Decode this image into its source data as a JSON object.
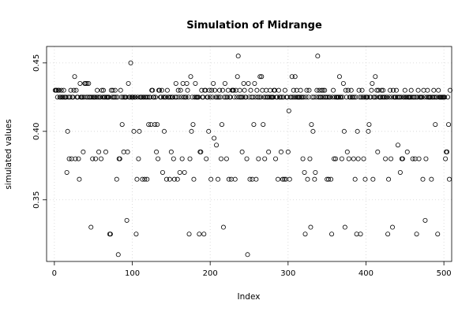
{
  "chart_data": {
    "type": "scatter",
    "title": "Simulation of Midrange",
    "xlabel": "Index",
    "ylabel": "simulated values",
    "xlim": [
      -10,
      510
    ],
    "ylim": [
      0.305,
      0.462
    ],
    "x_ticks": [
      0,
      100,
      200,
      300,
      400,
      500
    ],
    "y_ticks": [
      0.35,
      0.4,
      0.45
    ],
    "y_tick_labels": [
      "0.35",
      "0.40",
      "0.45"
    ],
    "grid": true,
    "marker": "open-circle",
    "values": [
      0.43,
      0.43,
      0.43,
      0.425,
      0.43,
      0.43,
      0.425,
      0.425,
      0.43,
      0.425,
      0.425,
      0.43,
      0.425,
      0.425,
      0.425,
      0.37,
      0.4,
      0.425,
      0.38,
      0.425,
      0.43,
      0.38,
      0.425,
      0.425,
      0.43,
      0.44,
      0.38,
      0.43,
      0.425,
      0.425,
      0.38,
      0.365,
      0.435,
      0.425,
      0.425,
      0.425,
      0.385,
      0.425,
      0.435,
      0.435,
      0.425,
      0.435,
      0.425,
      0.435,
      0.425,
      0.425,
      0.33,
      0.425,
      0.38,
      0.425,
      0.425,
      0.425,
      0.38,
      0.425,
      0.43,
      0.425,
      0.385,
      0.425,
      0.425,
      0.38,
      0.43,
      0.425,
      0.43,
      0.425,
      0.425,
      0.385,
      0.425,
      0.425,
      0.425,
      0.425,
      0.325,
      0.325,
      0.43,
      0.425,
      0.43,
      0.425,
      0.425,
      0.43,
      0.425,
      0.365,
      0.425,
      0.31,
      0.38,
      0.38,
      0.43,
      0.425,
      0.405,
      0.425,
      0.385,
      0.425,
      0.425,
      0.425,
      0.335,
      0.385,
      0.435,
      0.425,
      0.425,
      0.45,
      0.425,
      0.425,
      0.425,
      0.4,
      0.425,
      0.425,
      0.325,
      0.365,
      0.425,
      0.38,
      0.4,
      0.425,
      0.425,
      0.425,
      0.365,
      0.425,
      0.425,
      0.365,
      0.425,
      0.425,
      0.365,
      0.425,
      0.405,
      0.425,
      0.425,
      0.405,
      0.43,
      0.43,
      0.425,
      0.425,
      0.405,
      0.425,
      0.385,
      0.405,
      0.38,
      0.43,
      0.43,
      0.425,
      0.425,
      0.43,
      0.37,
      0.425,
      0.4,
      0.425,
      0.425,
      0.365,
      0.43,
      0.425,
      0.425,
      0.365,
      0.425,
      0.385,
      0.425,
      0.425,
      0.38,
      0.365,
      0.425,
      0.435,
      0.425,
      0.365,
      0.43,
      0.425,
      0.37,
      0.43,
      0.425,
      0.38,
      0.435,
      0.425,
      0.37,
      0.425,
      0.425,
      0.435,
      0.43,
      0.425,
      0.325,
      0.38,
      0.44,
      0.4,
      0.425,
      0.405,
      0.365,
      0.425,
      0.435,
      0.425,
      0.425,
      0.425,
      0.425,
      0.325,
      0.385,
      0.385,
      0.43,
      0.425,
      0.425,
      0.325,
      0.43,
      0.43,
      0.38,
      0.425,
      0.425,
      0.4,
      0.43,
      0.425,
      0.365,
      0.43,
      0.425,
      0.435,
      0.395,
      0.43,
      0.425,
      0.39,
      0.425,
      0.365,
      0.425,
      0.43,
      0.425,
      0.38,
      0.405,
      0.43,
      0.33,
      0.425,
      0.435,
      0.425,
      0.38,
      0.425,
      0.43,
      0.365,
      0.425,
      0.425,
      0.365,
      0.43,
      0.43,
      0.43,
      0.425,
      0.365,
      0.43,
      0.425,
      0.44,
      0.455,
      0.425,
      0.43,
      0.425,
      0.425,
      0.385,
      0.425,
      0.435,
      0.43,
      0.425,
      0.425,
      0.38,
      0.31,
      0.435,
      0.425,
      0.365,
      0.43,
      0.425,
      0.365,
      0.425,
      0.405,
      0.435,
      0.425,
      0.365,
      0.43,
      0.425,
      0.38,
      0.425,
      0.44,
      0.425,
      0.44,
      0.43,
      0.405,
      0.425,
      0.38,
      0.425,
      0.43,
      0.425,
      0.425,
      0.385,
      0.425,
      0.43,
      0.425,
      0.425,
      0.425,
      0.425,
      0.43,
      0.43,
      0.38,
      0.425,
      0.425,
      0.365,
      0.43,
      0.425,
      0.425,
      0.385,
      0.425,
      0.365,
      0.425,
      0.365,
      0.43,
      0.365,
      0.425,
      0.425,
      0.385,
      0.415,
      0.365,
      0.425,
      0.425,
      0.44,
      0.425,
      0.43,
      0.425,
      0.44,
      0.425,
      0.43,
      0.425,
      0.425,
      0.425,
      0.425,
      0.43,
      0.425,
      0.425,
      0.38,
      0.425,
      0.37,
      0.325,
      0.425,
      0.43,
      0.365,
      0.425,
      0.43,
      0.38,
      0.33,
      0.405,
      0.425,
      0.4,
      0.425,
      0.365,
      0.37,
      0.425,
      0.43,
      0.455,
      0.425,
      0.43,
      0.425,
      0.425,
      0.43,
      0.425,
      0.43,
      0.425,
      0.43,
      0.425,
      0.425,
      0.365,
      0.425,
      0.365,
      0.425,
      0.425,
      0.365,
      0.325,
      0.425,
      0.43,
      0.38,
      0.425,
      0.38,
      0.425,
      0.425,
      0.425,
      0.425,
      0.44,
      0.425,
      0.425,
      0.38,
      0.425,
      0.435,
      0.4,
      0.33,
      0.43,
      0.425,
      0.385,
      0.43,
      0.38,
      0.425,
      0.425,
      0.43,
      0.425,
      0.425,
      0.38,
      0.425,
      0.365,
      0.425,
      0.325,
      0.4,
      0.38,
      0.43,
      0.425,
      0.325,
      0.425,
      0.43,
      0.425,
      0.38,
      0.425,
      0.365,
      0.425,
      0.425,
      0.425,
      0.4,
      0.405,
      0.425,
      0.425,
      0.43,
      0.435,
      0.365,
      0.425,
      0.425,
      0.44,
      0.425,
      0.43,
      0.385,
      0.43,
      0.425,
      0.425,
      0.425,
      0.43,
      0.425,
      0.43,
      0.425,
      0.425,
      0.38,
      0.425,
      0.425,
      0.325,
      0.365,
      0.425,
      0.43,
      0.38,
      0.425,
      0.33,
      0.43,
      0.425,
      0.425,
      0.425,
      0.43,
      0.425,
      0.39,
      0.425,
      0.425,
      0.37,
      0.425,
      0.38,
      0.38,
      0.425,
      0.425,
      0.43,
      0.425,
      0.425,
      0.385,
      0.425,
      0.425,
      0.425,
      0.425,
      0.43,
      0.425,
      0.38,
      0.425,
      0.425,
      0.38,
      0.425,
      0.325,
      0.425,
      0.43,
      0.38,
      0.425,
      0.425,
      0.425,
      0.425,
      0.365,
      0.43,
      0.425,
      0.335,
      0.38,
      0.425,
      0.43,
      0.425,
      0.425,
      0.425,
      0.425,
      0.365,
      0.425,
      0.425,
      0.43,
      0.425,
      0.405,
      0.425,
      0.425,
      0.325,
      0.43,
      0.425,
      0.425,
      0.425,
      0.425,
      0.425,
      0.425,
      0.425,
      0.425,
      0.38,
      0.385,
      0.385,
      0.425,
      0.405,
      0.365,
      0.43
    ]
  }
}
